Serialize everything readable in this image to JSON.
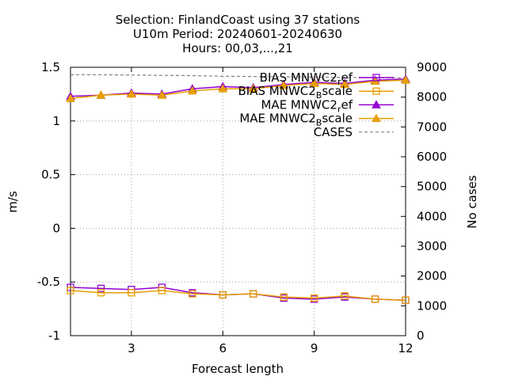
{
  "chart_data": {
    "type": "line",
    "title_lines": [
      "Selection: FinlandCoast using    37 stations",
      "U10m   Period: 20240601-20240630",
      "Hours: 00,03,...,21"
    ],
    "xlabel": "Forecast length",
    "ylabel": "m/s",
    "y2label": "No cases",
    "xlim": [
      1,
      12
    ],
    "ylim": [
      -1,
      1.5
    ],
    "y2lim": [
      0,
      9000
    ],
    "xticks": [
      3,
      6,
      9,
      12
    ],
    "yticks": [
      -1,
      -0.5,
      0,
      0.5,
      1,
      1.5
    ],
    "ytick_labels": [
      "-1",
      "-0.5",
      "0",
      "0.5",
      "1",
      "1.5"
    ],
    "y2ticks": [
      0,
      1000,
      2000,
      3000,
      4000,
      5000,
      6000,
      7000,
      8000,
      9000
    ],
    "grid": true,
    "legend_position": "top-right",
    "x": [
      1,
      2,
      3,
      4,
      5,
      6,
      7,
      8,
      9,
      10,
      11,
      12
    ],
    "series": [
      {
        "name": "BIAS MNWC2_ref",
        "legend_main": "BIAS MNWC2",
        "legend_sub": "r",
        "legend_tail": "ef",
        "color": "#9400d3",
        "marker": "square",
        "axis": "y",
        "values": [
          -0.55,
          -0.56,
          -0.57,
          -0.55,
          -0.6,
          -0.62,
          -0.61,
          -0.65,
          -0.66,
          -0.64,
          -0.66,
          -0.67
        ]
      },
      {
        "name": "BIAS MNWC2_Bscale",
        "legend_main": "BIAS MNWC2",
        "legend_sub": "B",
        "legend_tail": "scale",
        "color": "#e69f00",
        "marker": "square",
        "axis": "y",
        "values": [
          -0.58,
          -0.6,
          -0.6,
          -0.58,
          -0.61,
          -0.62,
          -0.61,
          -0.64,
          -0.65,
          -0.63,
          -0.66,
          -0.67
        ]
      },
      {
        "name": "MAE MNWC2_ref",
        "legend_main": "MAE MNWC2",
        "legend_sub": "r",
        "legend_tail": "ef",
        "color": "#9400d3",
        "marker": "triangle",
        "axis": "y",
        "values": [
          1.23,
          1.24,
          1.26,
          1.25,
          1.3,
          1.32,
          1.31,
          1.34,
          1.36,
          1.35,
          1.38,
          1.39
        ]
      },
      {
        "name": "MAE MNWC2_Bscale",
        "legend_main": "MAE MNWC2",
        "legend_sub": "B",
        "legend_tail": "scale",
        "color": "#e69f00",
        "marker": "triangle",
        "axis": "y",
        "values": [
          1.21,
          1.24,
          1.25,
          1.24,
          1.28,
          1.3,
          1.3,
          1.33,
          1.35,
          1.34,
          1.37,
          1.38
        ]
      },
      {
        "name": "CASES",
        "legend_main": "CASES",
        "legend_sub": "",
        "legend_tail": "",
        "color": "#808080",
        "marker": "none",
        "dashed": true,
        "axis": "y2",
        "values": [
          8750,
          8750,
          8740,
          8730,
          8720,
          8700,
          8690,
          8680,
          8670,
          8660,
          8650,
          8640
        ]
      }
    ]
  }
}
